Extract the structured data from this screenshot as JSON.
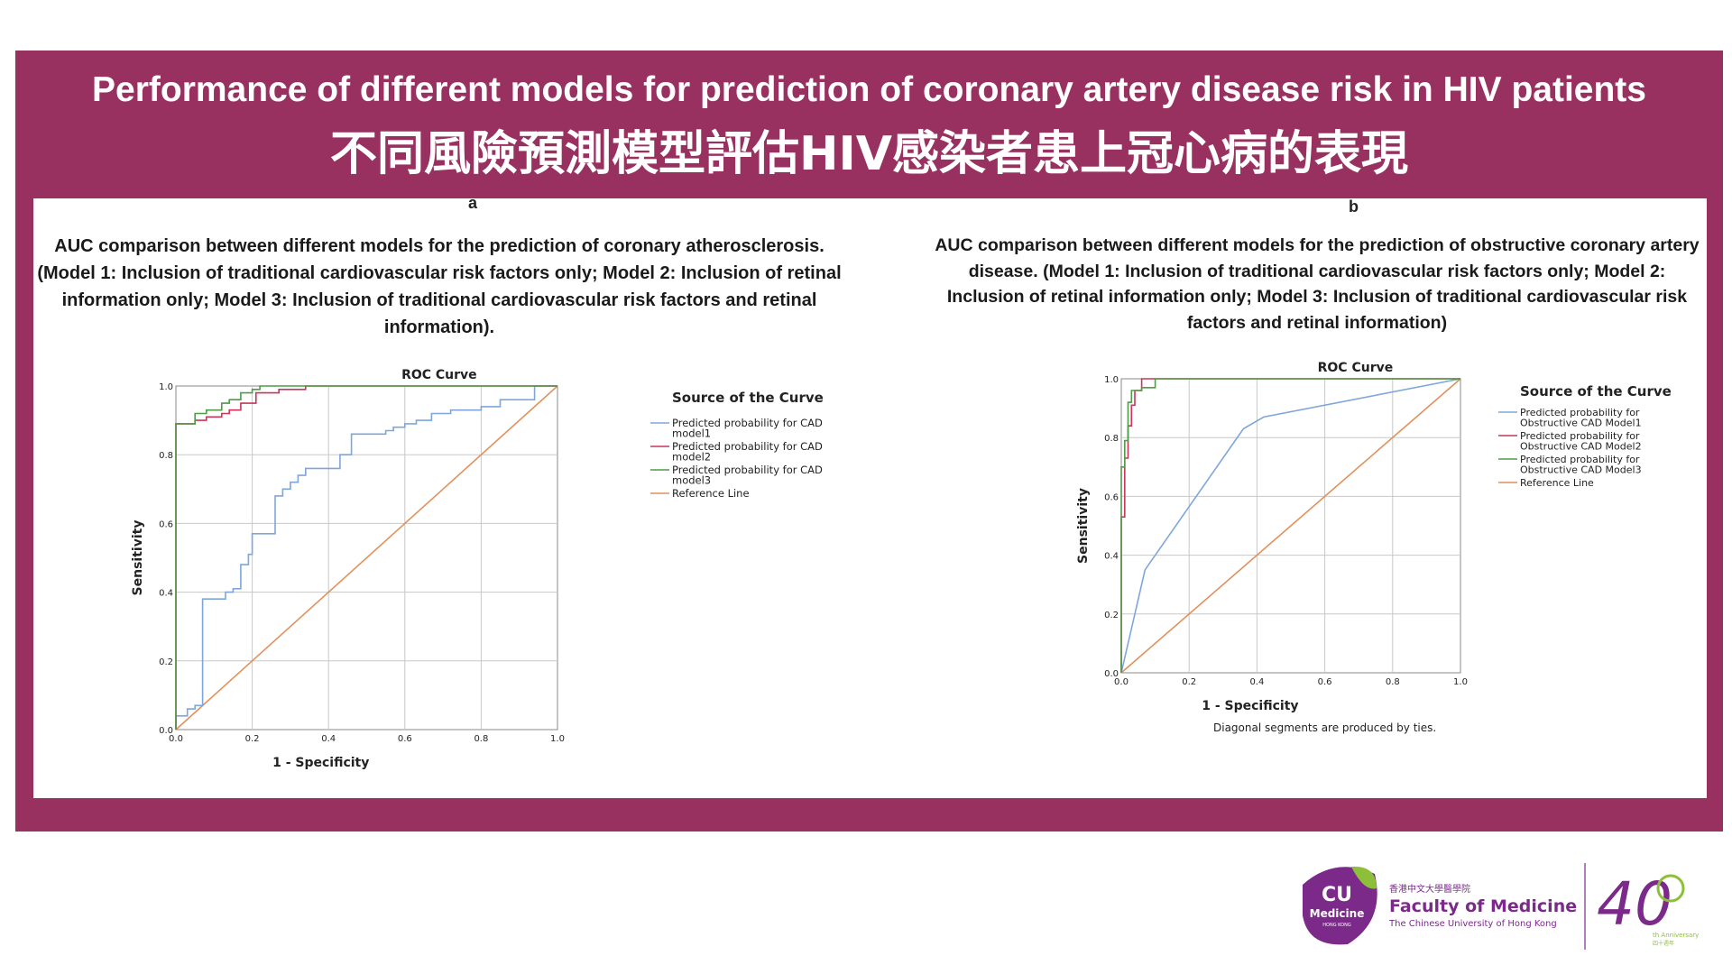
{
  "header": {
    "title_en": "Performance of different models for prediction of coronary artery disease risk in HIV patients",
    "title_zh": "不同風險預測模型評估HIV感染者患上冠心病的表現"
  },
  "panels": {
    "a": {
      "letter": "a",
      "caption": "AUC comparison between different models for the prediction of coronary atherosclerosis. (Model 1: Inclusion of traditional cardiovascular risk factors only; Model 2: Inclusion of retinal information only; Model 3: Inclusion of traditional cardiovascular risk factors and retinal information)."
    },
    "b": {
      "letter": "b",
      "caption": "AUC comparison between different models for the prediction of obstructive coronary artery disease. (Model 1: Inclusion of traditional cardiovascular risk factors only; Model 2: Inclusion of retinal information only; Model 3: Inclusion of traditional cardiovascular risk factors and retinal information)",
      "footnote": "Diagonal segments are produced by ties."
    }
  },
  "logo": {
    "cu_line1": "CU",
    "cu_line2": "Medicine",
    "cu_line3": "HONG KONG",
    "faculty_zh": "香港中文大學醫學院",
    "faculty_en": "Faculty of Medicine",
    "university": "The Chinese University of Hong Kong",
    "anniversary_number": "40",
    "anniversary_label": "th Anniversary",
    "anniversary_zh": "四十週年"
  },
  "colors": {
    "banner": "#98315f",
    "model1": "#7ea6db",
    "model2": "#c8365a",
    "model3": "#4f9b47",
    "reference": "#e1915c"
  },
  "chart_data": [
    {
      "type": "line",
      "title": "ROC Curve",
      "xlabel": "1 - Specificity",
      "ylabel": "Sensitivity",
      "xlim": [
        0,
        1
      ],
      "ylim": [
        0,
        1
      ],
      "ticks": [
        "0.0",
        "0.2",
        "0.4",
        "0.6",
        "0.8",
        "1.0"
      ],
      "grid": true,
      "legend_title": "Source of the Curve",
      "legend_position": "right",
      "series": [
        {
          "name": "Predicted probability for CAD model1",
          "legend_lines": [
            "Predicted probability for CAD",
            "model1"
          ],
          "color": "#7ea6db",
          "points": [
            [
              0,
              0
            ],
            [
              0,
              0.04
            ],
            [
              0.03,
              0.04
            ],
            [
              0.03,
              0.06
            ],
            [
              0.05,
              0.06
            ],
            [
              0.05,
              0.07
            ],
            [
              0.07,
              0.07
            ],
            [
              0.07,
              0.38
            ],
            [
              0.13,
              0.38
            ],
            [
              0.13,
              0.4
            ],
            [
              0.15,
              0.4
            ],
            [
              0.15,
              0.41
            ],
            [
              0.17,
              0.41
            ],
            [
              0.17,
              0.48
            ],
            [
              0.19,
              0.48
            ],
            [
              0.19,
              0.51
            ],
            [
              0.2,
              0.51
            ],
            [
              0.2,
              0.57
            ],
            [
              0.26,
              0.57
            ],
            [
              0.26,
              0.68
            ],
            [
              0.28,
              0.68
            ],
            [
              0.28,
              0.7
            ],
            [
              0.3,
              0.7
            ],
            [
              0.3,
              0.72
            ],
            [
              0.32,
              0.72
            ],
            [
              0.32,
              0.74
            ],
            [
              0.34,
              0.74
            ],
            [
              0.34,
              0.76
            ],
            [
              0.43,
              0.76
            ],
            [
              0.43,
              0.8
            ],
            [
              0.46,
              0.8
            ],
            [
              0.46,
              0.86
            ],
            [
              0.55,
              0.86
            ],
            [
              0.55,
              0.87
            ],
            [
              0.57,
              0.87
            ],
            [
              0.57,
              0.88
            ],
            [
              0.6,
              0.88
            ],
            [
              0.6,
              0.89
            ],
            [
              0.63,
              0.89
            ],
            [
              0.63,
              0.9
            ],
            [
              0.67,
              0.9
            ],
            [
              0.67,
              0.92
            ],
            [
              0.72,
              0.92
            ],
            [
              0.72,
              0.93
            ],
            [
              0.8,
              0.93
            ],
            [
              0.8,
              0.94
            ],
            [
              0.85,
              0.94
            ],
            [
              0.85,
              0.96
            ],
            [
              0.94,
              0.96
            ],
            [
              0.94,
              1
            ],
            [
              1,
              1
            ]
          ]
        },
        {
          "name": "Predicted probability for CAD model2",
          "legend_lines": [
            "Predicted probability for CAD",
            "model2"
          ],
          "color": "#c8365a",
          "points": [
            [
              0,
              0
            ],
            [
              0,
              0.89
            ],
            [
              0.05,
              0.89
            ],
            [
              0.05,
              0.9
            ],
            [
              0.08,
              0.9
            ],
            [
              0.08,
              0.91
            ],
            [
              0.12,
              0.91
            ],
            [
              0.12,
              0.92
            ],
            [
              0.14,
              0.92
            ],
            [
              0.14,
              0.93
            ],
            [
              0.17,
              0.93
            ],
            [
              0.17,
              0.95
            ],
            [
              0.21,
              0.95
            ],
            [
              0.21,
              0.98
            ],
            [
              0.27,
              0.98
            ],
            [
              0.27,
              0.99
            ],
            [
              0.34,
              0.99
            ],
            [
              0.34,
              1
            ],
            [
              1,
              1
            ]
          ]
        },
        {
          "name": "Predicted probability for CAD model3",
          "legend_lines": [
            "Predicted probability for CAD",
            "model3"
          ],
          "color": "#4f9b47",
          "points": [
            [
              0,
              0
            ],
            [
              0,
              0.89
            ],
            [
              0.05,
              0.89
            ],
            [
              0.05,
              0.92
            ],
            [
              0.08,
              0.92
            ],
            [
              0.08,
              0.93
            ],
            [
              0.12,
              0.93
            ],
            [
              0.12,
              0.95
            ],
            [
              0.14,
              0.95
            ],
            [
              0.14,
              0.96
            ],
            [
              0.17,
              0.96
            ],
            [
              0.17,
              0.98
            ],
            [
              0.2,
              0.98
            ],
            [
              0.2,
              0.99
            ],
            [
              0.22,
              0.99
            ],
            [
              0.22,
              1
            ],
            [
              1,
              1
            ]
          ]
        },
        {
          "name": "Reference Line",
          "legend_lines": [
            "Reference Line"
          ],
          "color": "#e1915c",
          "points": [
            [
              0,
              0
            ],
            [
              1,
              1
            ]
          ]
        }
      ]
    },
    {
      "type": "line",
      "title": "ROC Curve",
      "xlabel": "1 - Specificity",
      "ylabel": "Sensitivity",
      "xlim": [
        0,
        1
      ],
      "ylim": [
        0,
        1
      ],
      "ticks": [
        "0.0",
        "0.2",
        "0.4",
        "0.6",
        "0.8",
        "1.0"
      ],
      "grid": true,
      "legend_title": "Source of the Curve",
      "legend_position": "right",
      "series": [
        {
          "name": "Predicted probability for Obstructive CAD Model1",
          "legend_lines": [
            "Predicted probability for",
            "Obstructive CAD Model1"
          ],
          "color": "#7ea6db",
          "points": [
            [
              0,
              0
            ],
            [
              0.07,
              0.35
            ],
            [
              0.36,
              0.83
            ],
            [
              0.42,
              0.87
            ],
            [
              1,
              1
            ]
          ]
        },
        {
          "name": "Predicted probability for Obstructive CAD Model2",
          "legend_lines": [
            "Predicted probability for",
            "Obstructive CAD Model2"
          ],
          "color": "#c8365a",
          "points": [
            [
              0,
              0
            ],
            [
              0,
              0.53
            ],
            [
              0.01,
              0.53
            ],
            [
              0.01,
              0.73
            ],
            [
              0.02,
              0.73
            ],
            [
              0.02,
              0.84
            ],
            [
              0.03,
              0.84
            ],
            [
              0.03,
              0.91
            ],
            [
              0.04,
              0.91
            ],
            [
              0.04,
              0.96
            ],
            [
              0.06,
              0.96
            ],
            [
              0.06,
              1
            ],
            [
              1,
              1
            ]
          ]
        },
        {
          "name": "Predicted probability for Obstructive CAD Model3",
          "legend_lines": [
            "Predicted probability for",
            "Obstructive CAD Model3"
          ],
          "color": "#4f9b47",
          "points": [
            [
              0,
              0
            ],
            [
              0,
              0.7
            ],
            [
              0.01,
              0.7
            ],
            [
              0.01,
              0.79
            ],
            [
              0.02,
              0.79
            ],
            [
              0.02,
              0.92
            ],
            [
              0.03,
              0.92
            ],
            [
              0.03,
              0.96
            ],
            [
              0.06,
              0.96
            ],
            [
              0.06,
              0.97
            ],
            [
              0.1,
              0.97
            ],
            [
              0.1,
              1
            ],
            [
              1,
              1
            ]
          ]
        },
        {
          "name": "Reference Line",
          "legend_lines": [
            "Reference Line"
          ],
          "color": "#e1915c",
          "points": [
            [
              0,
              0
            ],
            [
              1,
              1
            ]
          ]
        }
      ]
    }
  ]
}
